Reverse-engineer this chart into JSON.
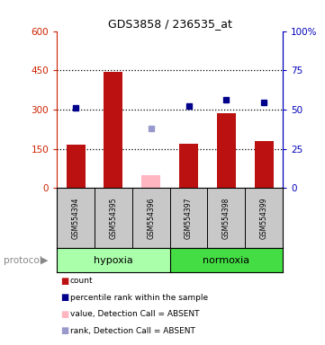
{
  "title": "GDS3858 / 236535_at",
  "samples": [
    "GSM554394",
    "GSM554395",
    "GSM554396",
    "GSM554397",
    "GSM554398",
    "GSM554399"
  ],
  "bar_values": [
    165,
    445,
    null,
    170,
    285,
    180
  ],
  "bar_color": "#BB1111",
  "absent_bar_values": [
    null,
    null,
    50,
    null,
    null,
    null
  ],
  "absent_bar_color": "#FFB6C1",
  "dot_values_left": [
    308,
    null,
    null,
    315,
    338,
    328
  ],
  "dot_color": "#00008B",
  "absent_dot_values_left": [
    null,
    null,
    228,
    null,
    null,
    null
  ],
  "absent_dot_color": "#9999CC",
  "ylim_left": [
    0,
    600
  ],
  "ylim_right": [
    0,
    100
  ],
  "yticks_left": [
    0,
    150,
    300,
    450,
    600
  ],
  "ytick_labels_left": [
    "0",
    "150",
    "300",
    "450",
    "600"
  ],
  "yticks_right": [
    0,
    25,
    50,
    75,
    100
  ],
  "ytick_labels_right": [
    "0",
    "25",
    "50",
    "75",
    "100%"
  ],
  "hlines": [
    150,
    300,
    450
  ],
  "left_axis_color": "#CC2200",
  "right_axis_color": "#0000BB",
  "hypoxia_color": "#AAFFAA",
  "normoxia_color": "#44DD44",
  "sample_label_bg": "#C8C8C8",
  "legend_items": [
    {
      "label": "count",
      "color": "#BB1111"
    },
    {
      "label": "percentile rank within the sample",
      "color": "#00008B"
    },
    {
      "label": "value, Detection Call = ABSENT",
      "color": "#FFB6C1"
    },
    {
      "label": "rank, Detection Call = ABSENT",
      "color": "#9999CC"
    }
  ]
}
